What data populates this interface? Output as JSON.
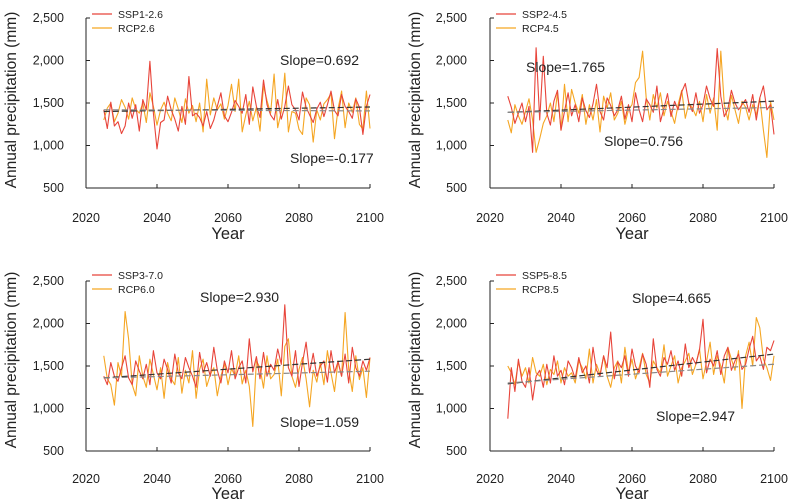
{
  "figure": {
    "ylabel": "Annual precipitation (mm)",
    "xlabel": "Year"
  },
  "chart_data": [
    {
      "type": "line",
      "xlabel": "Year",
      "ylabel": "Annual precipitation (mm)",
      "xlim": [
        2020,
        2100
      ],
      "ylim": [
        500,
        2500
      ],
      "xticks": [
        "2020",
        "2040",
        "2060",
        "2080",
        "2100"
      ],
      "yticks": [
        "500",
        "1,000",
        "1,500",
        "2,000",
        "2,500"
      ],
      "x_start": 2025,
      "x_step": 1,
      "series": [
        {
          "name": "SSP1-2.6",
          "color": "#e8443a",
          "values": [
            1420,
            1200,
            1510,
            1230,
            1280,
            1140,
            1230,
            1500,
            1320,
            1480,
            1170,
            1540,
            1420,
            1990,
            1380,
            960,
            1270,
            1300,
            1580,
            1420,
            1310,
            1170,
            1460,
            1250,
            1810,
            1350,
            1380,
            1330,
            1230,
            1400,
            1200,
            1300,
            1460,
            1620,
            1350,
            1280,
            1390,
            1530,
            1460,
            1380,
            1600,
            1250,
            1690,
            1460,
            1330,
            1770,
            1480,
            1360,
            1300,
            1540,
            1310,
            1460,
            1700,
            1480,
            1420,
            1300,
            1630,
            1450,
            1360,
            1270,
            1430,
            1510,
            1340,
            1480,
            1640,
            1410,
            1350,
            1600,
            1460,
            1400,
            1320,
            1550,
            1450,
            1130,
            1460,
            1600
          ]
        },
        {
          "name": "RCP2.6",
          "color": "#f5a623",
          "values": [
            1300,
            1440,
            1500,
            1280,
            1380,
            1540,
            1450,
            1310,
            1560,
            1430,
            1380,
            1500,
            1270,
            1620,
            1460,
            1240,
            1420,
            1510,
            1380,
            1290,
            1560,
            1430,
            1270,
            1550,
            1380,
            1470,
            1280,
            1500,
            1160,
            1780,
            1360,
            1560,
            1420,
            1490,
            1310,
            1470,
            1720,
            1400,
            1780,
            1160,
            1360,
            1520,
            1290,
            1450,
            1170,
            1700,
            1530,
            1380,
            1840,
            1210,
            1400,
            1850,
            1160,
            1400,
            1380,
            1190,
            1130,
            1560,
            1480,
            1040,
            1420,
            1300,
            1490,
            1540,
            1610,
            1080,
            1430,
            1640,
            1210,
            1500,
            1390,
            1560,
            1250,
            1190,
            1640,
            1200
          ]
        }
      ],
      "trends": [
        {
          "name": "SSP1-2.6 trend",
          "start": 1400,
          "end": 1453
        },
        {
          "name": "RCP2.6 trend",
          "start": 1420,
          "end": 1407
        }
      ],
      "annotations": [
        "Slope=0.692",
        "Slope=-0.177"
      ]
    },
    {
      "type": "line",
      "xlabel": "Year",
      "ylabel": "Annual precipitation (mm)",
      "xlim": [
        2020,
        2100
      ],
      "ylim": [
        500,
        2500
      ],
      "xticks": [
        "2020",
        "2040",
        "2060",
        "2080",
        "2100"
      ],
      "yticks": [
        "500",
        "1,000",
        "1,500",
        "2,000",
        "2,500"
      ],
      "x_start": 2025,
      "x_step": 1,
      "series": [
        {
          "name": "SSP2-4.5",
          "color": "#e8443a",
          "values": [
            1580,
            1450,
            1260,
            1380,
            1500,
            1280,
            1460,
            920,
            2150,
            1300,
            2050,
            1380,
            1240,
            1520,
            1650,
            1180,
            1400,
            1620,
            1350,
            1480,
            1280,
            1560,
            1410,
            1330,
            1490,
            1720,
            1400,
            1300,
            1560,
            1470,
            1350,
            1420,
            1580,
            1310,
            1480,
            1280,
            1620,
            1420,
            1280,
            1550,
            1480,
            1390,
            1700,
            1280,
            1440,
            1610,
            1340,
            1520,
            1420,
            1630,
            1730,
            1500,
            1400,
            1620,
            1380,
            1480,
            1700,
            1550,
            1460,
            2140,
            1580,
            1340,
            1430,
            1650,
            1500,
            1420,
            1480,
            1540,
            1390,
            1600,
            1300,
            1560,
            1700,
            1420,
            1480,
            1130
          ]
        },
        {
          "name": "RCP4.5",
          "color": "#f5a623",
          "values": [
            1300,
            1150,
            1480,
            1350,
            1250,
            1400,
            1550,
            1300,
            920,
            1080,
            1260,
            1350,
            1500,
            1280,
            1620,
            1180,
            1720,
            1280,
            1660,
            1500,
            1380,
            1600,
            1250,
            1480,
            1300,
            1540,
            1160,
            1580,
            1440,
            1620,
            1300,
            1380,
            1520,
            1250,
            1420,
            1480,
            1740,
            1800,
            2110,
            1560,
            1300,
            1600,
            1440,
            1620,
            1350,
            1520,
            1400,
            1260,
            1480,
            1650,
            1320,
            1500,
            1440,
            1350,
            1520,
            1280,
            1600,
            1380,
            1560,
            1180,
            2110,
            1480,
            1300,
            1590,
            1420,
            1260,
            1520,
            1450,
            1300,
            1480,
            1360,
            1560,
            1180,
            860,
            1520,
            1300
          ]
        }
      ],
      "trends": [
        {
          "name": "SSP2-4.5 trend",
          "start": 1390,
          "end": 1522
        },
        {
          "name": "RCP4.5 trend",
          "start": 1390,
          "end": 1447
        }
      ],
      "annotations": [
        "Slope=1.765",
        "Slope=0.756"
      ]
    },
    {
      "type": "line",
      "xlabel": "Year",
      "ylabel": "Annual precipitation (mm)",
      "xlim": [
        2020,
        2100
      ],
      "ylim": [
        500,
        2500
      ],
      "xticks": [
        "2020",
        "2040",
        "2060",
        "2080",
        "2100"
      ],
      "yticks": [
        "500",
        "1,000",
        "1,500",
        "2,000",
        "2,500"
      ],
      "x_start": 2025,
      "x_step": 1,
      "series": [
        {
          "name": "SSP3-7.0",
          "color": "#e8443a",
          "values": [
            1380,
            1280,
            1540,
            1380,
            1320,
            1480,
            1620,
            1360,
            1280,
            1560,
            1440,
            1350,
            1520,
            1280,
            1680,
            1420,
            1350,
            1580,
            1460,
            1300,
            1640,
            1420,
            1350,
            1600,
            1480,
            1380,
            1250,
            1660,
            1420,
            1540,
            1380,
            1720,
            1450,
            1300,
            1560,
            1420,
            1680,
            1350,
            1480,
            1560,
            1300,
            1820,
            1430,
            1610,
            1350,
            1660,
            1380,
            1520,
            1450,
            1700,
            1520,
            2220,
            1480,
            1380,
            1680,
            1260,
            1540,
            1780,
            1420,
            1650,
            1380,
            1500,
            1560,
            1310,
            1680,
            1420,
            1550,
            1380,
            1640,
            1300,
            1720,
            1480,
            1380,
            1560,
            1450,
            1600
          ]
        },
        {
          "name": "RCP6.0",
          "color": "#f5a623",
          "values": [
            1620,
            1350,
            1280,
            1040,
            1540,
            1380,
            2140,
            1820,
            1280,
            1150,
            1620,
            1380,
            1250,
            1580,
            1400,
            1220,
            1480,
            1120,
            1540,
            1350,
            1280,
            1600,
            1180,
            1450,
            1300,
            1680,
            1120,
            1460,
            1580,
            1260,
            1400,
            1480,
            1150,
            1380,
            1530,
            1280,
            1470,
            1380,
            1620,
            1290,
            1450,
            1260,
            790,
            1560,
            1480,
            1240,
            1620,
            1350,
            1400,
            1580,
            1150,
            1730,
            1820,
            1380,
            1250,
            1460,
            1600,
            1350,
            1020,
            1450,
            1310,
            1540,
            1280,
            1680,
            1420,
            1200,
            1560,
            1380,
            2130,
            1460,
            1200,
            1620,
            1340,
            1480,
            1130,
            1600
          ]
        }
      ],
      "trends": [
        {
          "name": "SSP3-7.0 trend",
          "start": 1360,
          "end": 1580
        },
        {
          "name": "RCP6.0 trend",
          "start": 1360,
          "end": 1439
        }
      ],
      "annotations": [
        "Slope=2.930",
        "Slope=1.059"
      ]
    },
    {
      "type": "line",
      "xlabel": "Year",
      "ylabel": "Annual precipitation (mm)",
      "xlim": [
        2020,
        2100
      ],
      "ylim": [
        500,
        2500
      ],
      "xticks": [
        "2020",
        "2040",
        "2060",
        "2080",
        "2100"
      ],
      "yticks": [
        "500",
        "1,000",
        "1,500",
        "2,000",
        "2,500"
      ],
      "x_start": 2025,
      "x_step": 1,
      "series": [
        {
          "name": "SSP5-8.5",
          "color": "#e8443a",
          "values": [
            880,
            1480,
            1200,
            1580,
            1320,
            1250,
            1480,
            1100,
            1380,
            1450,
            1250,
            1520,
            1300,
            1620,
            1380,
            1450,
            1280,
            1560,
            1480,
            1350,
            1600,
            1420,
            1500,
            1300,
            1720,
            1450,
            1380,
            1620,
            1480,
            1900,
            1350,
            1550,
            1480,
            1620,
            1380,
            1700,
            1500,
            1420,
            1640,
            1520,
            1250,
            1820,
            1460,
            1380,
            1600,
            1520,
            1680,
            1450,
            1560,
            1380,
            1760,
            1480,
            1600,
            1520,
            1690,
            2050,
            1420,
            1580,
            1500,
            1680,
            1400,
            1620,
            1720,
            1450,
            1560,
            1640,
            1460,
            1520,
            1700,
            1850,
            1560,
            1620,
            1460,
            1720,
            1680,
            1800
          ]
        },
        {
          "name": "RCP8.5",
          "color": "#f5a623",
          "values": [
            1500,
            1420,
            1280,
            1550,
            1380,
            1480,
            1300,
            1600,
            1420,
            1380,
            1520,
            1280,
            1460,
            1400,
            1560,
            1300,
            1480,
            1380,
            1420,
            1300,
            1560,
            1480,
            1350,
            1700,
            1300,
            1520,
            1400,
            1620,
            1380,
            1250,
            1480,
            1560,
            1300,
            1720,
            1420,
            1580,
            1350,
            1480,
            1650,
            1400,
            1300,
            1560,
            1480,
            1420,
            1750,
            1380,
            1500,
            1620,
            1300,
            1480,
            1560,
            1650,
            1400,
            1520,
            1700,
            1350,
            1550,
            1780,
            1400,
            1620,
            1500,
            1300,
            1720,
            1580,
            1450,
            1680,
            1000,
            1620,
            1780,
            1500,
            2070,
            1950,
            1580,
            1480,
            1330,
            1620
          ]
        }
      ],
      "trends": [
        {
          "name": "SSP5-8.5 trend",
          "start": 1290,
          "end": 1640
        },
        {
          "name": "RCP8.5 trend",
          "start": 1300,
          "end": 1521
        }
      ],
      "annotations": [
        "Slope=4.665",
        "Slope=2.947"
      ]
    }
  ]
}
